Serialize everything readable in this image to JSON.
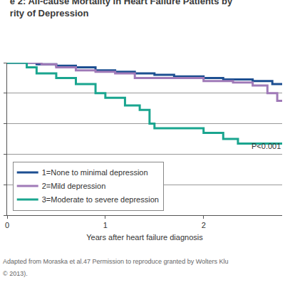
{
  "chart_data": {
    "type": "line",
    "line_style": "step",
    "title": "e 2: All-cause Mortality in Heart Failure Patients by\nrity of Depression",
    "x_label": "Years after heart failure diagnosis",
    "xlim": [
      0,
      2.8
    ],
    "xticks": [
      0,
      1,
      2
    ],
    "ylim": [
      0,
      1.0
    ],
    "yticks": [
      0,
      0.2,
      0.4,
      0.6,
      0.8,
      1.0
    ],
    "tick_labels": "x",
    "grid": true,
    "legend": "lower left",
    "series": [
      {
        "name": "1=None to minimal depression",
        "color": "#1d4f91",
        "x": [
          0,
          0.3,
          0.5,
          0.7,
          0.9,
          1.1,
          1.3,
          1.5,
          1.7,
          2.0,
          2.2,
          2.5,
          2.7,
          2.8
        ],
        "values": [
          1,
          0.99,
          0.98,
          0.97,
          0.95,
          0.94,
          0.93,
          0.92,
          0.91,
          0.9,
          0.89,
          0.88,
          0.86,
          0.86
        ]
      },
      {
        "name": "2=Mild depression",
        "color": "#a07ab8",
        "x": [
          0,
          0.35,
          0.5,
          0.7,
          0.9,
          1.1,
          1.3,
          1.6,
          2.0,
          2.3,
          2.5,
          2.65,
          2.75,
          2.8
        ],
        "values": [
          1,
          0.99,
          0.97,
          0.95,
          0.94,
          0.93,
          0.9,
          0.9,
          0.88,
          0.87,
          0.85,
          0.8,
          0.75,
          0.75
        ]
      },
      {
        "name": "3=Moderate to severe depression",
        "color": "#1aa58f",
        "x": [
          0,
          0.2,
          0.3,
          0.5,
          0.7,
          0.9,
          1.0,
          1.2,
          1.35,
          1.45,
          1.5,
          1.8,
          2.0,
          2.2,
          2.35,
          2.8
        ],
        "values": [
          1,
          0.97,
          0.93,
          0.9,
          0.86,
          0.8,
          0.77,
          0.72,
          0.69,
          0.6,
          0.57,
          0.57,
          0.54,
          0.5,
          0.47,
          0.47
        ]
      }
    ],
    "annotations": [
      "P<0.001",
      "Adapted from Moraska et al.47 Permission to reproduce granted by Wolters Klu",
      "© 2013)."
    ]
  }
}
